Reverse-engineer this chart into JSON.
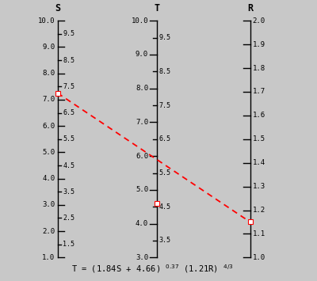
{
  "background_color": "#c8c8c8",
  "S_min": 1.0,
  "S_max": 10.0,
  "S_label": "S",
  "S_major_ticks": [
    1.0,
    2.0,
    3.0,
    4.0,
    5.0,
    6.0,
    7.0,
    8.0,
    9.0,
    10.0
  ],
  "S_minor_ticks": [
    1.5,
    2.5,
    3.5,
    4.5,
    5.5,
    6.5,
    7.5,
    8.5,
    9.5
  ],
  "T_min": 3.0,
  "T_max": 10.0,
  "T_label": "T",
  "T_major_ticks": [
    3.0,
    4.0,
    5.0,
    6.0,
    7.0,
    8.0,
    9.0,
    10.0
  ],
  "T_minor_ticks": [
    3.5,
    4.5,
    5.5,
    6.5,
    7.5,
    8.5,
    9.5
  ],
  "R_min": 1.0,
  "R_max": 2.0,
  "R_label": "R",
  "R_major_ticks": [
    1.0,
    1.1,
    1.2,
    1.3,
    1.4,
    1.5,
    1.6,
    1.7,
    1.8,
    1.9,
    2.0
  ],
  "line_color": "red",
  "S_point": 7.25,
  "T_point": 4.6,
  "R_point": 1.15,
  "font_size": 6.5,
  "label_font_size": 8.5
}
